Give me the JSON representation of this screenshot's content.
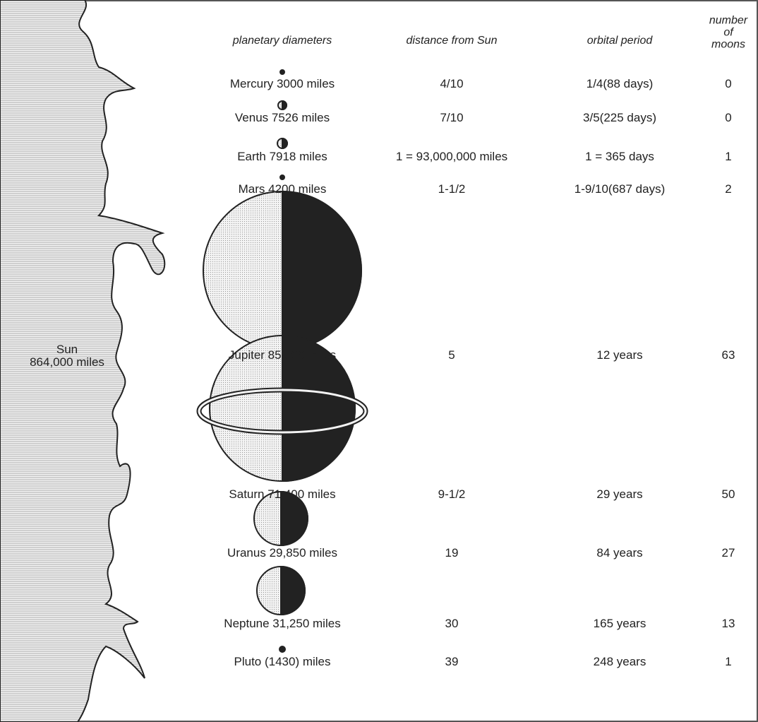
{
  "header": {
    "diameters": "planetary diameters",
    "distance": "distance from Sun",
    "period": "orbital period",
    "moons": "number of moons"
  },
  "sun": {
    "name": "Sun",
    "diameter": "864,000 miles"
  },
  "rows": [
    {
      "diameter": "Mercury 3000 miles",
      "distance": "4/10",
      "period": "1/4(88 days)",
      "moons": "0"
    },
    {
      "diameter": "Venus 7526 miles",
      "distance": "7/10",
      "period": "3/5(225 days)",
      "moons": "0"
    },
    {
      "diameter": "Earth 7918 miles",
      "distance": "1 = 93,000,000 miles",
      "period": "1 = 365 days",
      "moons": "1"
    },
    {
      "diameter": "Mars 4200 miles",
      "distance": "1-1/2",
      "period": "1-9/10(687 days)",
      "moons": "2"
    },
    {
      "diameter": "Jupiter 85,500 miles",
      "distance": "5",
      "period": "12 years",
      "moons": "63"
    },
    {
      "diameter": "Saturn 71,400 miles",
      "distance": "9-1/2",
      "period": "29 years",
      "moons": "50"
    },
    {
      "diameter": "Uranus 29,850 miles",
      "distance": "19",
      "period": "84 years",
      "moons": "27"
    },
    {
      "diameter": "Neptune 31,250 miles",
      "distance": "30",
      "period": "165 years",
      "moons": "13"
    },
    {
      "diameter": "Pluto (1430) miles",
      "distance": "39",
      "period": "248 years",
      "moons": "1"
    }
  ]
}
